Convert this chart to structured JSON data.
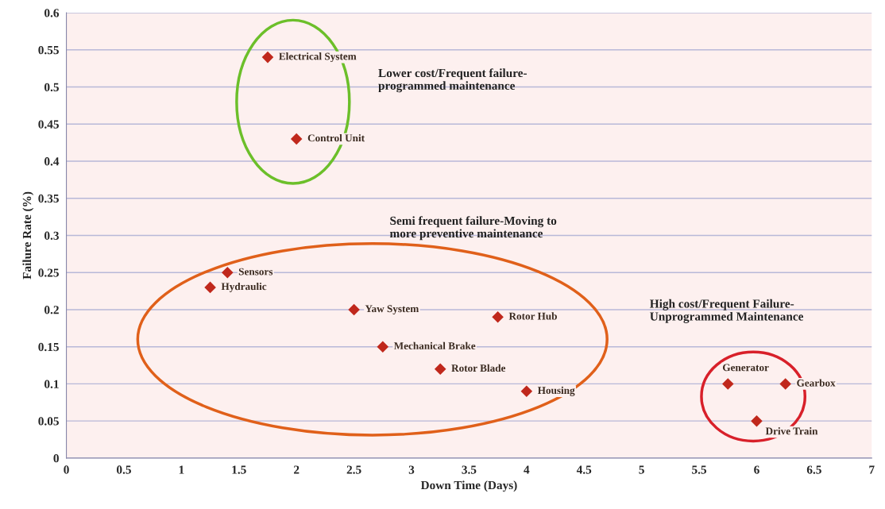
{
  "chart_data": {
    "type": "scatter",
    "xlabel": "Down Time (Days)",
    "ylabel": "Failure Rate (%)",
    "x": [
      1.75,
      2.0,
      1.4,
      1.25,
      2.5,
      2.75,
      3.75,
      3.25,
      4.0,
      5.75,
      6.25,
      6.0
    ],
    "values": [
      0.54,
      0.43,
      0.25,
      0.23,
      0.2,
      0.15,
      0.19,
      0.12,
      0.09,
      0.1,
      0.1,
      0.05
    ],
    "color": "#c0281c",
    "marker": "diamond",
    "xlim": [
      0,
      7
    ],
    "xticks": [
      0,
      0.5,
      1,
      1.5,
      2,
      2.5,
      3,
      3.5,
      4,
      4.5,
      5,
      5.5,
      6,
      6.5,
      7
    ],
    "ylim": [
      0,
      0.6
    ],
    "yticks": [
      0,
      0.05,
      0.1,
      0.15,
      0.2,
      0.25,
      0.3,
      0.35,
      0.4,
      0.45,
      0.5,
      0.55,
      0.6
    ],
    "grid": "y",
    "annotations": [
      {
        "text": "Electrical System",
        "x": 1.75,
        "y": 0.54
      },
      {
        "text": "Control Unit",
        "x": 2.0,
        "y": 0.43
      },
      {
        "text": "Sensors",
        "x": 1.4,
        "y": 0.25
      },
      {
        "text": "Hydraulic",
        "x": 1.25,
        "y": 0.23
      },
      {
        "text": "Yaw System",
        "x": 2.5,
        "y": 0.2
      },
      {
        "text": "Mechanical Brake",
        "x": 2.75,
        "y": 0.15
      },
      {
        "text": "Rotor Hub",
        "x": 3.75,
        "y": 0.19
      },
      {
        "text": "Rotor Blade",
        "x": 3.25,
        "y": 0.12
      },
      {
        "text": "Housing",
        "x": 4.0,
        "y": 0.09
      },
      {
        "text": "Generator",
        "x": 5.75,
        "y": 0.1
      },
      {
        "text": "Gearbox",
        "x": 6.25,
        "y": 0.1
      },
      {
        "text": "Drive Train",
        "x": 6.0,
        "y": 0.05
      },
      "Lower cost/Frequent failure-\nprogrammed maintenance",
      "Semi frequent failure-Moving to\nmore preventive maintenance",
      "High cost/Frequent Failure-\nUnprogrammed Maintenance"
    ]
  }
}
